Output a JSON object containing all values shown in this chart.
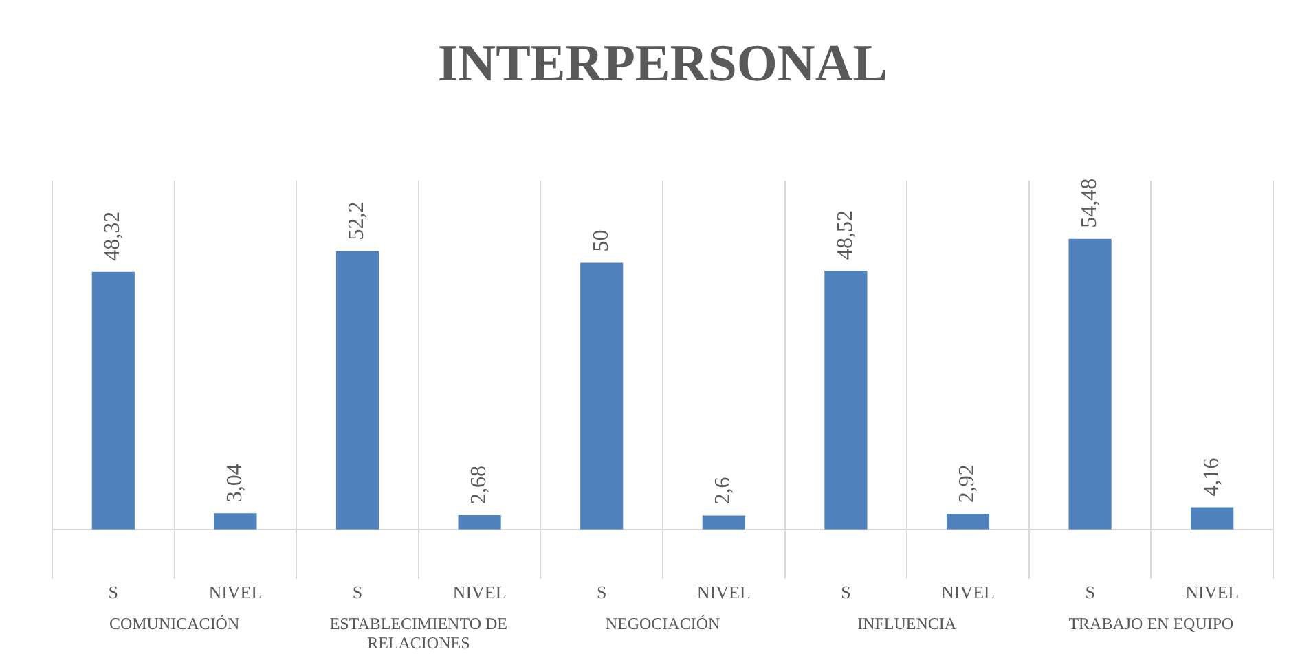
{
  "chart_data": {
    "type": "bar",
    "title": "INTERPERSONAL",
    "categories": [
      "S",
      "NIVEL",
      "S",
      "NIVEL",
      "S",
      "NIVEL",
      "S",
      "NIVEL",
      "S",
      "NIVEL"
    ],
    "values": [
      48.32,
      3.04,
      52.2,
      2.68,
      50,
      2.6,
      48.52,
      2.92,
      54.48,
      4.16
    ],
    "value_labels": [
      "48,32",
      "3,04",
      "52,2",
      "2,68",
      "50",
      "2,6",
      "48,52",
      "2,92",
      "54,48",
      "4,16"
    ],
    "color": "#4f81bd",
    "grid": "x",
    "annotations": [
      "COMUNICACIÓN",
      "ESTABLECIMIENTO DE RELACIONES",
      "NEGOCIACIÓN",
      "INFLUENCIA",
      "TRABAJO EN EQUIPO"
    ]
  }
}
